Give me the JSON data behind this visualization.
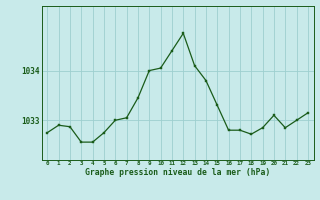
{
  "x": [
    0,
    1,
    2,
    3,
    4,
    5,
    6,
    7,
    8,
    9,
    10,
    11,
    12,
    13,
    14,
    15,
    16,
    17,
    18,
    19,
    20,
    21,
    22,
    23
  ],
  "y": [
    1032.75,
    1032.9,
    1032.87,
    1032.56,
    1032.56,
    1032.75,
    1033.0,
    1033.05,
    1033.45,
    1034.0,
    1034.05,
    1034.4,
    1034.75,
    1034.1,
    1033.8,
    1033.3,
    1032.8,
    1032.8,
    1032.72,
    1032.85,
    1033.1,
    1032.85,
    1033.0,
    1033.15
  ],
  "line_color": "#1a5c1a",
  "marker_color": "#1a5c1a",
  "bg_color": "#c8eaea",
  "grid_color": "#9ecfcf",
  "axis_color": "#1a5c1a",
  "xlabel": "Graphe pression niveau de la mer (hPa)",
  "xlabel_color": "#1a5c1a",
  "ytick_labels": [
    "1033",
    "1034"
  ],
  "ytick_values": [
    1033.0,
    1034.0
  ],
  "ylim": [
    1032.2,
    1035.3
  ],
  "xlim": [
    -0.5,
    23.5
  ],
  "figsize": [
    3.2,
    2.0
  ],
  "dpi": 100
}
